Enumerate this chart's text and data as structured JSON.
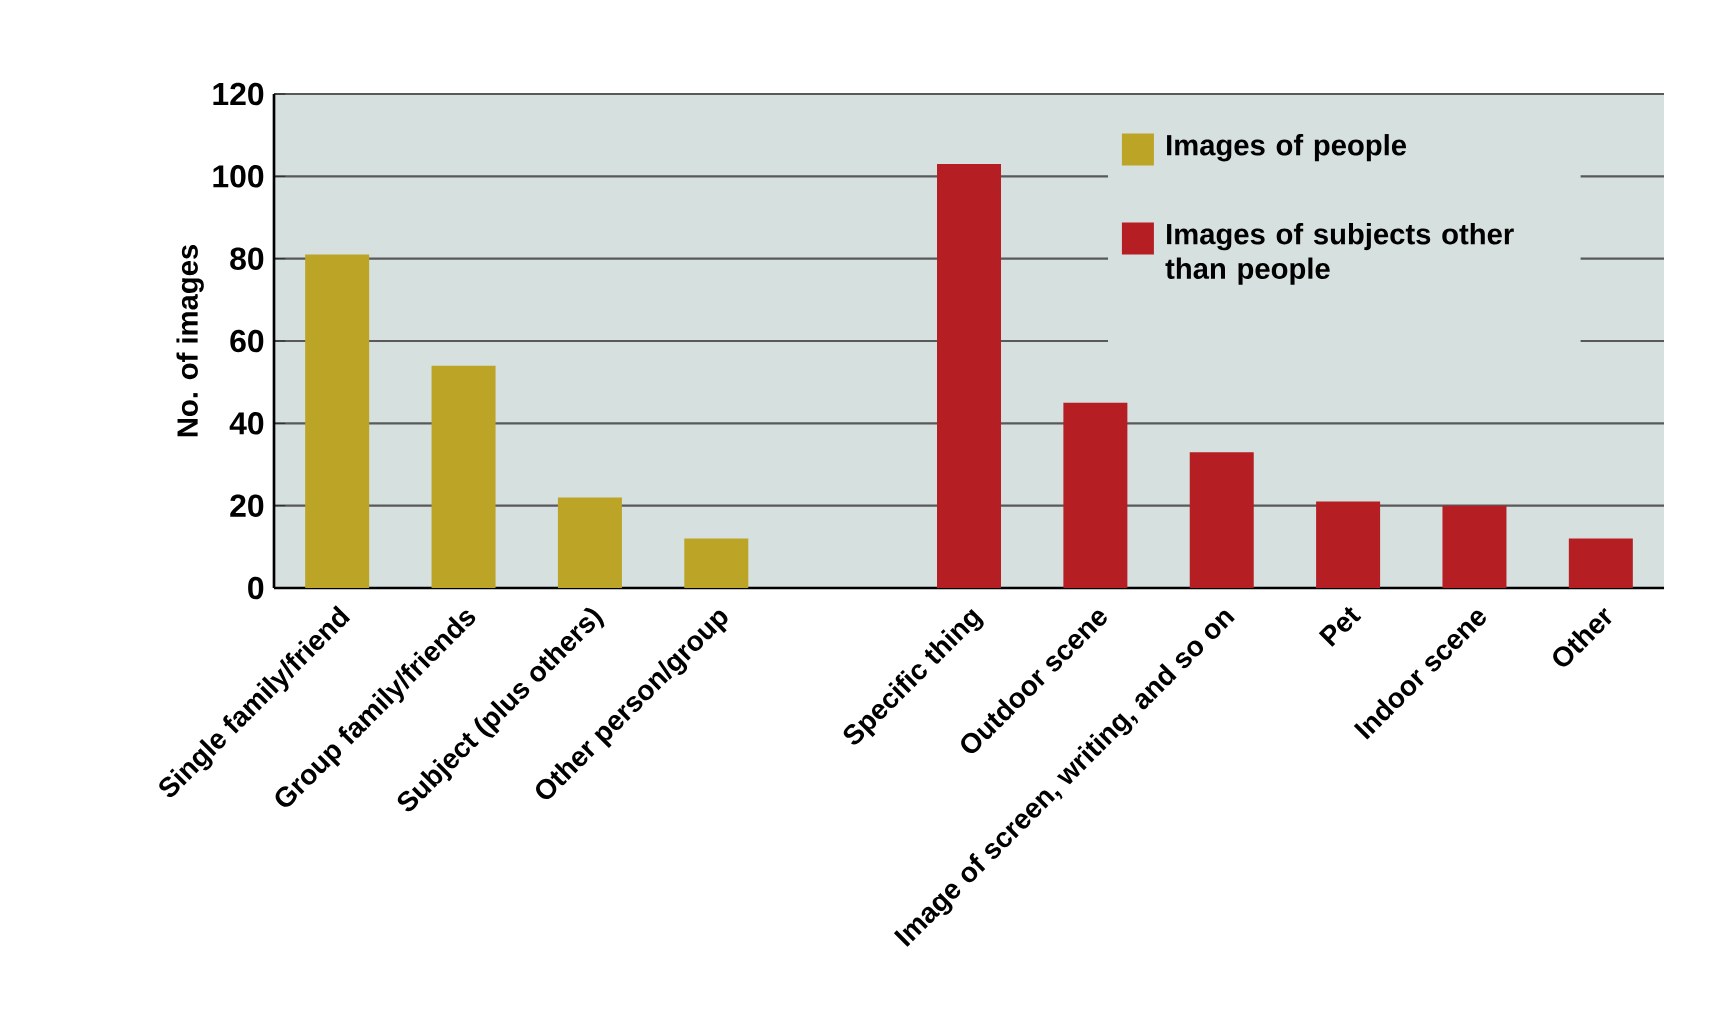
{
  "chart_data": {
    "type": "bar",
    "ylabel": "No. of images",
    "categories": [
      "Single family/friend",
      "Group family/friends",
      "Subject (plus others)",
      "Other person/group",
      null,
      "Specific thing",
      "Outdoor scene",
      "Image of screen, writing, and so on",
      "Pet",
      "Indoor scene",
      "Other"
    ],
    "series": [
      {
        "name": "Images of people",
        "color": "#bca426",
        "values": [
          81,
          54,
          22,
          12,
          null,
          null,
          null,
          null,
          null,
          null,
          null
        ]
      },
      {
        "name": "Images of subjects other than people",
        "color": "#b51f24",
        "values": [
          null,
          null,
          null,
          null,
          null,
          103,
          45,
          33,
          21,
          20,
          12
        ]
      }
    ],
    "ylim": [
      0,
      120
    ],
    "yticks": [
      0,
      20,
      40,
      60,
      80,
      100,
      120
    ],
    "grid": "y",
    "legend": "top right"
  }
}
